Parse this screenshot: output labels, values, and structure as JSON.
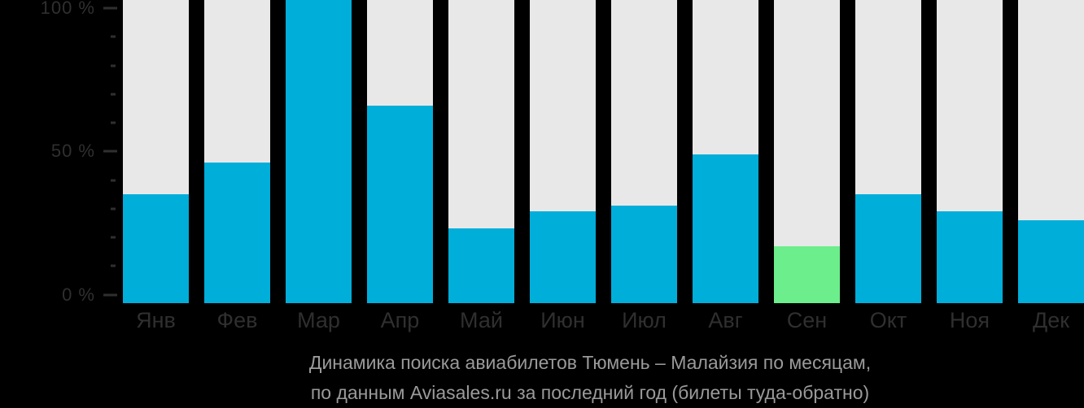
{
  "chart_data": {
    "type": "bar",
    "categories": [
      "Янв",
      "Фев",
      "Мар",
      "Апр",
      "Май",
      "Июн",
      "Июл",
      "Авг",
      "Сен",
      "Окт",
      "Ноя",
      "Дек"
    ],
    "values": [
      35,
      46,
      100,
      66,
      23,
      29,
      31,
      49,
      17,
      35,
      29,
      26
    ],
    "unit": "%",
    "highlight_index": 8,
    "title": "Динамика поиска авиабилетов Тюмень – Малайзия по месяцам,",
    "subtitle": "по данным Aviasales.ru за последний год (билеты туда-обратно)",
    "xlabel": "",
    "ylabel": "",
    "ylim": [
      0,
      100
    ],
    "yticks": [
      {
        "pct": 100,
        "label": "100 %"
      },
      {
        "pct": 50,
        "label": "50 %"
      },
      {
        "pct": 0,
        "label": "0 %"
      }
    ],
    "minor_ticks_pct": [
      10,
      20,
      30,
      40,
      60,
      70,
      80,
      90
    ],
    "grid": "off",
    "legend": "none"
  },
  "colors": {
    "bar": "#00AEDA",
    "highlight_bar": "#6BEE8B",
    "column_bg": "#E8E8E8",
    "axis_text": "#2F2F2F",
    "footer_text": "#9A9A9A",
    "background": "#000000"
  }
}
